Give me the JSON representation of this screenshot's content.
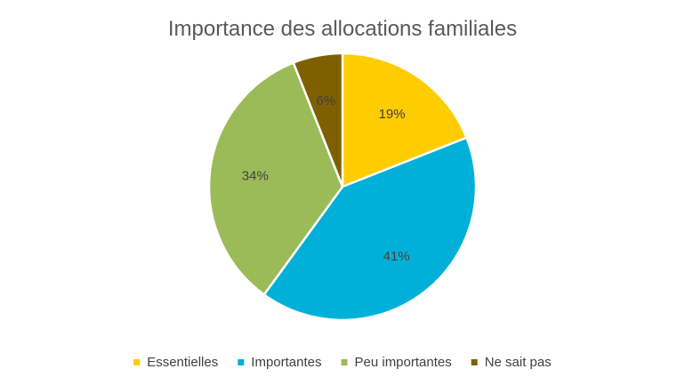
{
  "chart_data": {
    "type": "pie",
    "title": "Importance des allocations familiales",
    "categories": [
      "Essentielles",
      "Importantes",
      "Peu importantes",
      "Ne sait pas"
    ],
    "values": [
      19,
      41,
      34,
      6
    ],
    "value_labels": [
      "19%",
      "41%",
      "34%",
      "6%"
    ],
    "colors": [
      "#FFCC00",
      "#00B0D8",
      "#9BBB59",
      "#7F6000"
    ],
    "start": "12 o'clock, clockwise",
    "legend_position": "bottom"
  }
}
